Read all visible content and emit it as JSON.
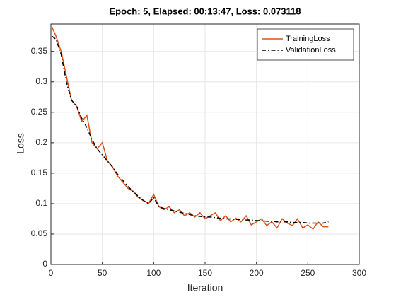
{
  "chart_data": {
    "type": "line",
    "title": "Epoch: 5, Elapsed: 00:13:47, Loss: 0.073118",
    "x_label": "Iteration",
    "y_label": "Loss",
    "x": [
      1,
      5,
      10,
      15,
      20,
      25,
      30,
      35,
      40,
      45,
      50,
      55,
      60,
      65,
      70,
      75,
      80,
      85,
      90,
      95,
      100,
      105,
      110,
      115,
      120,
      125,
      130,
      135,
      140,
      145,
      150,
      155,
      160,
      165,
      170,
      175,
      180,
      185,
      190,
      195,
      200,
      205,
      210,
      215,
      220,
      225,
      230,
      235,
      240,
      245,
      250,
      255,
      260,
      265,
      270
    ],
    "series": [
      {
        "name": "TrainingLoss",
        "color": "#d95319",
        "line_style": "solid",
        "values": [
          0.39,
          0.375,
          0.35,
          0.31,
          0.27,
          0.26,
          0.235,
          0.245,
          0.2,
          0.19,
          0.2,
          0.17,
          0.16,
          0.145,
          0.135,
          0.125,
          0.12,
          0.11,
          0.105,
          0.1,
          0.115,
          0.095,
          0.09,
          0.095,
          0.085,
          0.09,
          0.08,
          0.085,
          0.078,
          0.085,
          0.075,
          0.08,
          0.085,
          0.072,
          0.08,
          0.07,
          0.076,
          0.07,
          0.08,
          0.065,
          0.07,
          0.075,
          0.064,
          0.07,
          0.06,
          0.075,
          0.068,
          0.064,
          0.075,
          0.06,
          0.065,
          0.058,
          0.07,
          0.062,
          0.062
        ]
      },
      {
        "name": "ValidationLoss",
        "color": "#000000",
        "line_style": "dashdot",
        "values": [
          0.375,
          0.37,
          0.345,
          0.3,
          0.27,
          0.26,
          0.24,
          0.225,
          0.205,
          0.19,
          0.18,
          0.17,
          0.16,
          0.148,
          0.138,
          0.128,
          0.12,
          0.112,
          0.105,
          0.1,
          0.11,
          0.095,
          0.092,
          0.09,
          0.088,
          0.086,
          0.084,
          0.082,
          0.08,
          0.079,
          0.078,
          0.078,
          0.077,
          0.076,
          0.075,
          0.075,
          0.074,
          0.074,
          0.073,
          0.073,
          0.072,
          0.072,
          0.071,
          0.071,
          0.07,
          0.07,
          0.07,
          0.069,
          0.069,
          0.069,
          0.068,
          0.068,
          0.068,
          0.068,
          0.07
        ]
      }
    ],
    "xlim": [
      0,
      300
    ],
    "xticks": [
      0,
      50,
      100,
      150,
      200,
      250,
      300
    ],
    "ylim": [
      0,
      0.395
    ],
    "yticks": [
      0,
      0.05,
      0.1,
      0.15,
      0.2,
      0.25,
      0.3,
      0.35
    ],
    "grid": true,
    "legend": "northeast"
  }
}
